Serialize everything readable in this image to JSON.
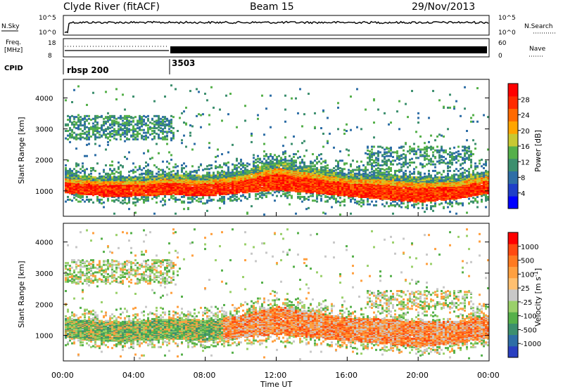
{
  "header": {
    "station": "Clyde River (fitACF)",
    "beam": "Beam 15",
    "date": "29/Nov/2013"
  },
  "nsky_panel": {
    "left_label": "N.Sky",
    "right_label": "N.Search",
    "ticks_left": [
      "10^5",
      "10^0"
    ],
    "ticks_right": [
      "10^5",
      "10^0"
    ]
  },
  "freq_panel": {
    "left_label": "Freq.",
    "left_unit": "[MHz]",
    "right_label": "Nave",
    "ticks_left": [
      "18",
      "8"
    ],
    "ticks_right": [
      "60",
      "0"
    ]
  },
  "cpid": {
    "label": "CPID",
    "segments": [
      {
        "name": "rbsp 200",
        "start_hour": 0.0
      },
      {
        "name": "3503",
        "start_hour": 6.0
      }
    ]
  },
  "x_axis": {
    "label": "Time UT",
    "ticks": [
      "00:00",
      "04:00",
      "08:00",
      "12:00",
      "16:00",
      "20:00",
      "00:00"
    ]
  },
  "chart_data": [
    {
      "type": "heatmap",
      "title": "Power",
      "ylabel": "Slant Range [km]",
      "xlabel": "Time UT",
      "xlim_hours": [
        0,
        24
      ],
      "ylim": [
        180,
        4600
      ],
      "y_ticks": [
        1000,
        2000,
        3000,
        4000
      ],
      "colorbar": {
        "label": "Power [dB]",
        "ticks": [
          "28",
          "24",
          "20",
          "16",
          "12",
          "8",
          "4"
        ],
        "colors": [
          "#0000ff",
          "#1f3fc8",
          "#2e6ea6",
          "#3c8f6e",
          "#55b04a",
          "#c8c832",
          "#ffa500",
          "#ff6a00",
          "#ff2a00",
          "#ff0000"
        ]
      },
      "main_band": [
        {
          "hour": 0.0,
          "low_km": 900,
          "high_km": 1500
        },
        {
          "hour": 2.0,
          "low_km": 800,
          "high_km": 1400
        },
        {
          "hour": 4.0,
          "low_km": 800,
          "high_km": 1400
        },
        {
          "hour": 6.0,
          "low_km": 850,
          "high_km": 1500
        },
        {
          "hour": 8.0,
          "low_km": 800,
          "high_km": 1450
        },
        {
          "hour": 10.0,
          "low_km": 900,
          "high_km": 1600
        },
        {
          "hour": 12.0,
          "low_km": 1000,
          "high_km": 1900
        },
        {
          "hour": 14.0,
          "low_km": 900,
          "high_km": 1700
        },
        {
          "hour": 16.0,
          "low_km": 800,
          "high_km": 1500
        },
        {
          "hour": 18.0,
          "low_km": 700,
          "high_km": 1500
        },
        {
          "hour": 20.0,
          "low_km": 600,
          "high_km": 1400
        },
        {
          "hour": 22.0,
          "low_km": 700,
          "high_km": 1400
        },
        {
          "hour": 24.0,
          "low_km": 900,
          "high_km": 1600
        }
      ]
    },
    {
      "type": "heatmap",
      "title": "Velocity",
      "ylabel": "Slant Range [km]",
      "xlabel": "Time UT",
      "xlim_hours": [
        0,
        24
      ],
      "ylim": [
        180,
        4600
      ],
      "y_ticks": [
        1000,
        2000,
        3000,
        4000
      ],
      "colorbar": {
        "label": "Velocity [m s",
        "label_sup": "-1",
        "label_end": "]",
        "ticks": [
          "1000",
          "500",
          "100",
          "25",
          "-25",
          "-100",
          "-500",
          "-1000"
        ],
        "colors": [
          "#2a3fc0",
          "#2e6ea6",
          "#3c8f6e",
          "#55b04a",
          "#9ad06a",
          "#c8c8c8",
          "#ffc070",
          "#ffa040",
          "#ff7a20",
          "#ff4a10",
          "#ff0000"
        ]
      }
    }
  ]
}
